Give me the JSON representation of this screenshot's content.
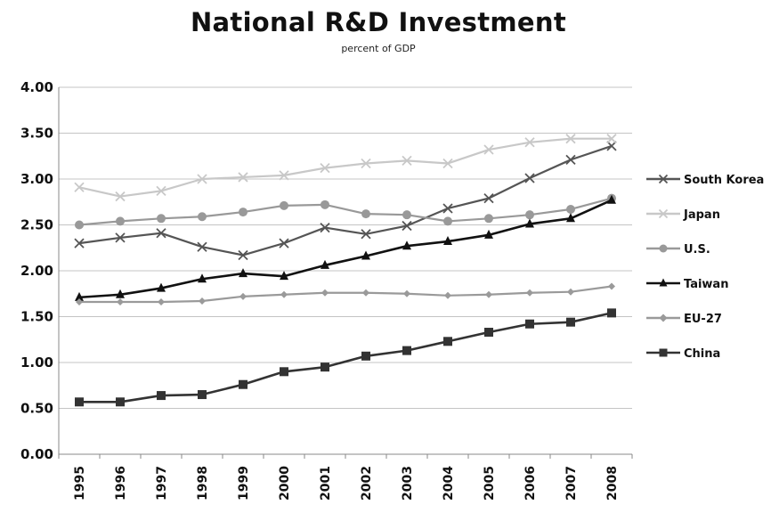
{
  "chart_data": {
    "type": "line",
    "title": "National R&D Investment",
    "subtitle": "percent of GDP",
    "xlabel": "",
    "ylabel": "",
    "x": [
      "1995",
      "1996",
      "1997",
      "1998",
      "1999",
      "2000",
      "2001",
      "2002",
      "2003",
      "2004",
      "2005",
      "2006",
      "2007",
      "2008"
    ],
    "ylim": [
      0,
      4
    ],
    "yticks": [
      "0.00",
      "0.50",
      "1.00",
      "1.50",
      "2.00",
      "2.50",
      "3.00",
      "3.50",
      "4.00"
    ],
    "grid": true,
    "legend_position": "right",
    "series": [
      {
        "name": "South Korea",
        "color": "#555555",
        "marker": "x",
        "values": [
          2.3,
          2.36,
          2.41,
          2.26,
          2.17,
          2.3,
          2.47,
          2.4,
          2.49,
          2.68,
          2.79,
          3.01,
          3.21,
          3.36
        ]
      },
      {
        "name": "Japan",
        "color": "#c8c8c8",
        "marker": "x",
        "values": [
          2.91,
          2.81,
          2.87,
          3.0,
          3.02,
          3.04,
          3.12,
          3.17,
          3.2,
          3.17,
          3.32,
          3.4,
          3.44,
          3.44
        ]
      },
      {
        "name": "U.S.",
        "color": "#999999",
        "marker": "circle",
        "values": [
          2.5,
          2.54,
          2.57,
          2.59,
          2.64,
          2.71,
          2.72,
          2.62,
          2.61,
          2.54,
          2.57,
          2.61,
          2.67,
          2.79
        ]
      },
      {
        "name": "Taiwan",
        "color": "#111111",
        "marker": "triangle",
        "values": [
          1.71,
          1.74,
          1.81,
          1.91,
          1.97,
          1.94,
          2.06,
          2.16,
          2.27,
          2.32,
          2.39,
          2.51,
          2.57,
          2.77
        ]
      },
      {
        "name": "EU-27",
        "color": "#9a9a9a",
        "marker": "diamond",
        "values": [
          1.66,
          1.66,
          1.66,
          1.67,
          1.72,
          1.74,
          1.76,
          1.76,
          1.75,
          1.73,
          1.74,
          1.76,
          1.77,
          1.83
        ]
      },
      {
        "name": "China",
        "color": "#333333",
        "marker": "square",
        "values": [
          0.57,
          0.57,
          0.64,
          0.65,
          0.76,
          0.9,
          0.95,
          1.07,
          1.13,
          1.23,
          1.33,
          1.42,
          1.44,
          1.54
        ]
      }
    ]
  }
}
